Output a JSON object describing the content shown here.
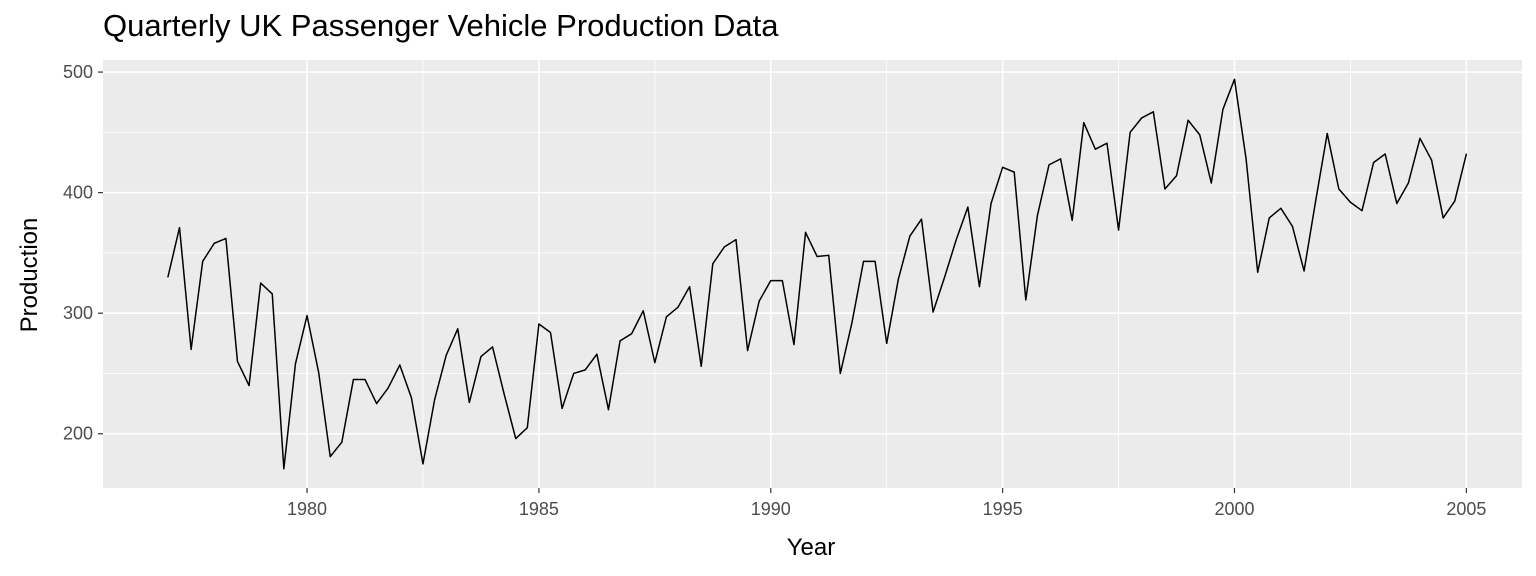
{
  "chart_data": {
    "type": "line",
    "title": "Quarterly UK Passenger Vehicle Production Data",
    "xlabel": "Year",
    "ylabel": "Production",
    "xlim": [
      1975.6,
      2006.2
    ],
    "ylim": [
      155,
      510
    ],
    "x_ticks": [
      1980,
      1985,
      1990,
      1995,
      2000,
      2005
    ],
    "y_ticks": [
      200,
      300,
      400,
      500
    ],
    "grid": true,
    "panel_background": "#ebebeb",
    "grid_color": "#ffffff",
    "line_color": "#000000",
    "series": [
      {
        "start": 1977.0,
        "step": 0.25,
        "values": [
          330,
          371,
          270,
          343,
          358,
          362,
          260,
          240,
          325,
          316,
          171,
          258,
          298,
          251,
          181,
          193,
          245,
          245,
          225,
          238,
          257,
          230,
          175,
          228,
          265,
          287,
          226,
          264,
          272,
          233,
          196,
          205,
          291,
          284,
          221,
          250,
          253,
          266,
          220,
          277,
          283,
          302,
          259,
          297,
          305,
          322,
          256,
          341,
          355,
          361,
          269,
          310,
          327,
          327,
          274,
          367,
          347,
          348,
          250,
          292,
          343,
          343,
          275,
          328,
          364,
          378,
          301,
          330,
          361,
          388,
          322,
          391,
          421,
          417,
          311,
          381,
          423,
          428,
          377,
          458,
          436,
          441,
          369,
          450,
          462,
          467,
          403,
          414,
          460,
          448,
          408,
          469,
          494,
          428,
          334,
          379,
          387,
          372,
          335,
          393,
          449,
          403,
          392,
          385,
          425,
          432,
          391,
          408,
          445,
          427,
          379,
          393,
          432
        ]
      }
    ]
  }
}
